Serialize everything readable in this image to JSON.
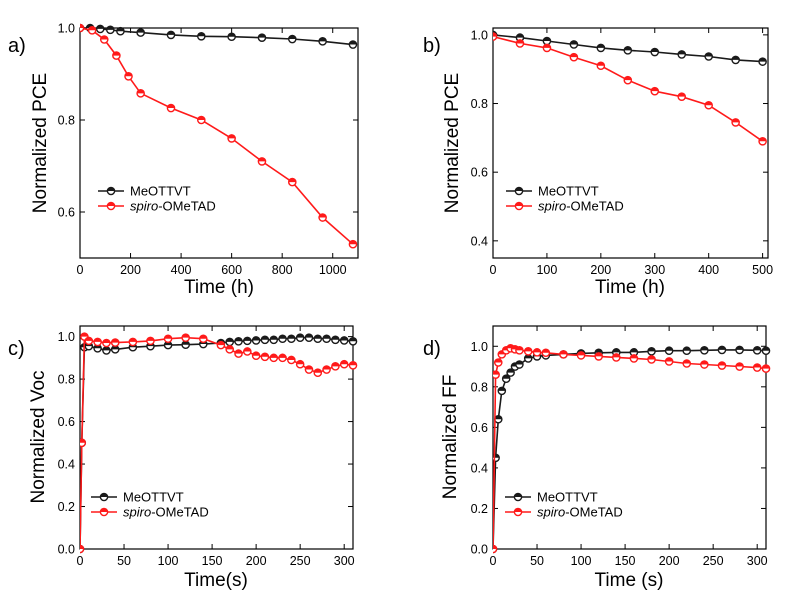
{
  "colors": {
    "meottvt": "#1a1a1a",
    "spiro": "#ff1a1a",
    "frame": "#000000",
    "background": "#ffffff"
  },
  "chart_data": [
    {
      "panel": "a)",
      "type": "line",
      "xlabel": "Time (h)",
      "ylabel": "Normalized PCE",
      "xlim": [
        0,
        1100
      ],
      "ylim": [
        0.5,
        1.0
      ],
      "xticks": [
        "0",
        "200",
        "400",
        "600",
        "800",
        "1000"
      ],
      "yticks": [
        "0.6",
        "0.8",
        "1.0"
      ],
      "grid": false,
      "legend": "lower-left",
      "series": [
        {
          "name": "MeOTTVT",
          "x": [
            0,
            40,
            80,
            120,
            160,
            240,
            360,
            480,
            600,
            720,
            840,
            960,
            1080
          ],
          "y": [
            1.0,
            1.0,
            0.998,
            0.996,
            0.993,
            0.99,
            0.985,
            0.982,
            0.981,
            0.979,
            0.976,
            0.971,
            0.964
          ]
        },
        {
          "name": "spiro-OMeTAD",
          "x": [
            0,
            48,
            96,
            144,
            192,
            240,
            360,
            480,
            600,
            720,
            840,
            960,
            1080
          ],
          "y": [
            1.0,
            0.995,
            0.975,
            0.94,
            0.895,
            0.858,
            0.826,
            0.8,
            0.76,
            0.71,
            0.665,
            0.588,
            0.53
          ]
        }
      ]
    },
    {
      "panel": "b)",
      "type": "line",
      "xlabel": "Time (h)",
      "ylabel": "Normalized PCE",
      "xlim": [
        0,
        510
      ],
      "ylim": [
        0.35,
        1.02
      ],
      "xticks": [
        "0",
        "100",
        "200",
        "300",
        "400",
        "500"
      ],
      "yticks": [
        "0.4",
        "0.6",
        "0.8",
        "1.0"
      ],
      "grid": false,
      "legend": "lower-left",
      "series": [
        {
          "name": "MeOTTVT",
          "x": [
            0,
            50,
            100,
            150,
            200,
            250,
            300,
            350,
            400,
            450,
            500
          ],
          "y": [
            1.0,
            0.992,
            0.982,
            0.972,
            0.962,
            0.955,
            0.95,
            0.943,
            0.937,
            0.927,
            0.922
          ]
        },
        {
          "name": "spiro-OMeTAD",
          "x": [
            0,
            50,
            100,
            150,
            200,
            250,
            300,
            350,
            400,
            450,
            500
          ],
          "y": [
            0.995,
            0.975,
            0.962,
            0.935,
            0.91,
            0.868,
            0.836,
            0.82,
            0.795,
            0.745,
            0.69
          ]
        }
      ]
    },
    {
      "panel": "c)",
      "type": "line",
      "xlabel": "Time(s)",
      "ylabel": "Normalized Voc",
      "xlim": [
        0,
        310
      ],
      "ylim": [
        0,
        1.05
      ],
      "xticks": [
        "0",
        "50",
        "100",
        "150",
        "200",
        "250",
        "300"
      ],
      "yticks": [
        "0.0",
        "0.2",
        "0.4",
        "0.6",
        "0.8",
        "1.0"
      ],
      "grid": false,
      "legend": "lower-left",
      "series": [
        {
          "name": "MeOTTVT",
          "x": [
            0,
            2,
            5,
            10,
            20,
            30,
            40,
            60,
            80,
            100,
            120,
            140,
            160,
            170,
            180,
            190,
            200,
            210,
            220,
            230,
            240,
            250,
            260,
            270,
            280,
            290,
            300,
            310
          ],
          "y": [
            0.0,
            0.5,
            0.95,
            0.955,
            0.945,
            0.935,
            0.94,
            0.95,
            0.955,
            0.96,
            0.962,
            0.965,
            0.97,
            0.975,
            0.978,
            0.98,
            0.982,
            0.985,
            0.985,
            0.99,
            0.99,
            0.995,
            0.995,
            0.99,
            0.99,
            0.985,
            0.982,
            0.978
          ]
        },
        {
          "name": "spiro-OMeTAD",
          "x": [
            0,
            2,
            5,
            10,
            20,
            30,
            40,
            60,
            80,
            100,
            120,
            140,
            160,
            170,
            180,
            190,
            200,
            210,
            220,
            230,
            240,
            250,
            260,
            270,
            280,
            290,
            300,
            310
          ],
          "y": [
            0.0,
            0.5,
            1.0,
            0.98,
            0.975,
            0.97,
            0.972,
            0.975,
            0.98,
            0.99,
            0.995,
            0.99,
            0.96,
            0.94,
            0.92,
            0.93,
            0.91,
            0.905,
            0.9,
            0.9,
            0.89,
            0.87,
            0.845,
            0.83,
            0.845,
            0.86,
            0.87,
            0.865
          ]
        }
      ]
    },
    {
      "panel": "d)",
      "type": "line",
      "xlabel": "Time (s)",
      "ylabel": "Normalized FF",
      "xlim": [
        0,
        310
      ],
      "ylim": [
        0,
        1.1
      ],
      "xticks": [
        "0",
        "50",
        "100",
        "150",
        "200",
        "250",
        "300"
      ],
      "yticks": [
        "0.0",
        "0.2",
        "0.4",
        "0.6",
        "0.8",
        "1.0"
      ],
      "grid": false,
      "legend": "lower-left",
      "series": [
        {
          "name": "MeOTTVT",
          "x": [
            0,
            3,
            6,
            10,
            15,
            20,
            25,
            30,
            40,
            50,
            60,
            80,
            100,
            120,
            140,
            160,
            180,
            200,
            220,
            240,
            260,
            280,
            300,
            310
          ],
          "y": [
            0.0,
            0.45,
            0.64,
            0.78,
            0.84,
            0.87,
            0.9,
            0.91,
            0.94,
            0.95,
            0.955,
            0.96,
            0.965,
            0.968,
            0.97,
            0.97,
            0.975,
            0.978,
            0.978,
            0.98,
            0.982,
            0.982,
            0.98,
            0.978
          ]
        },
        {
          "name": "spiro-OMeTAD",
          "x": [
            0,
            3,
            6,
            10,
            15,
            20,
            25,
            30,
            40,
            50,
            60,
            80,
            100,
            120,
            140,
            160,
            180,
            200,
            220,
            240,
            260,
            280,
            300,
            310
          ],
          "y": [
            0.0,
            0.86,
            0.92,
            0.96,
            0.98,
            0.99,
            0.985,
            0.98,
            0.975,
            0.97,
            0.968,
            0.96,
            0.955,
            0.95,
            0.945,
            0.94,
            0.935,
            0.925,
            0.915,
            0.91,
            0.905,
            0.9,
            0.895,
            0.89
          ]
        }
      ]
    }
  ]
}
